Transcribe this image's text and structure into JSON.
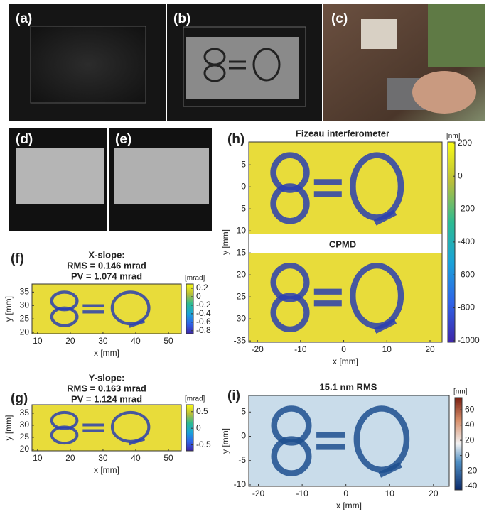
{
  "panels": [
    {
      "label": "(a)"
    },
    {
      "label": "(b)"
    },
    {
      "label": "(c)"
    },
    {
      "label": "(d)"
    },
    {
      "label": "(e)"
    }
  ],
  "charts": [
    {
      "type": "heatmap",
      "label": "(f)",
      "titles": [
        "X-slope:",
        "RMS = 0.146 mrad",
        "PV = 1.074 mrad"
      ],
      "xlabel": "x [mm]",
      "ylabel": "y [mm]",
      "xlim": [
        8.3,
        53.9
      ],
      "xticks": [
        10,
        20,
        30,
        40,
        50
      ],
      "ylim": [
        19.5,
        38
      ],
      "yticks": [
        20,
        25,
        30,
        35
      ],
      "colormap": "parula",
      "colorbar": {
        "unit": "[mrad]",
        "lim": [
          -0.87,
          0.3
        ],
        "ticks": [
          0.2,
          0,
          -0.2,
          -0.4,
          -0.6,
          -0.8
        ]
      }
    },
    {
      "type": "heatmap",
      "label": "(g)",
      "titles": [
        "Y-slope:",
        "RMS = 0.163 mrad",
        "PV = 1.124 mrad"
      ],
      "xlabel": "x [mm]",
      "ylabel": "y [mm]",
      "xlim": [
        8.3,
        53.9
      ],
      "xticks": [
        10,
        20,
        30,
        40,
        50
      ],
      "ylim": [
        19.4,
        38.5
      ],
      "yticks": [
        20,
        25,
        30,
        35
      ],
      "colormap": "parula",
      "colorbar": {
        "unit": "[mrad]",
        "lim": [
          -0.68,
          0.71
        ],
        "ticks": [
          0.5,
          0,
          -0.5
        ]
      }
    },
    {
      "type": "heatmap",
      "label": "(h)",
      "titles": [
        "Fizeau interferometer",
        "CPMD"
      ],
      "xlabel": "x [mm]",
      "ylabel": "y [mm]",
      "xlim": [
        -22,
        22.8
      ],
      "xticks": [
        -20,
        -10,
        0,
        10,
        20
      ],
      "ylim": [
        -35.3,
        10.2
      ],
      "yticks": [
        5,
        0,
        -5,
        -10,
        -15,
        -20,
        -25,
        -30,
        -35
      ],
      "colormap": "parula",
      "colorbar": {
        "unit": "[nm]",
        "lim": [
          -1009,
          208
        ],
        "ticks": [
          200,
          0,
          -200,
          -400,
          -600,
          -800,
          -1000
        ]
      }
    },
    {
      "type": "heatmap",
      "label": "(i)",
      "titles": [
        "15.1 nm RMS"
      ],
      "xlabel": "x [mm]",
      "ylabel": "y [mm]",
      "xlim": [
        -22.2,
        23.6
      ],
      "xticks": [
        -20,
        -10,
        0,
        10,
        20
      ],
      "ylim": [
        -10.3,
        8.4
      ],
      "yticks": [
        5,
        0,
        -5,
        -10
      ],
      "colormap": "RdBu",
      "colorbar": {
        "unit": "[nm]",
        "lim": [
          -45,
          76
        ],
        "ticks": [
          60,
          40,
          20,
          0,
          -20,
          -40
        ]
      }
    }
  ]
}
